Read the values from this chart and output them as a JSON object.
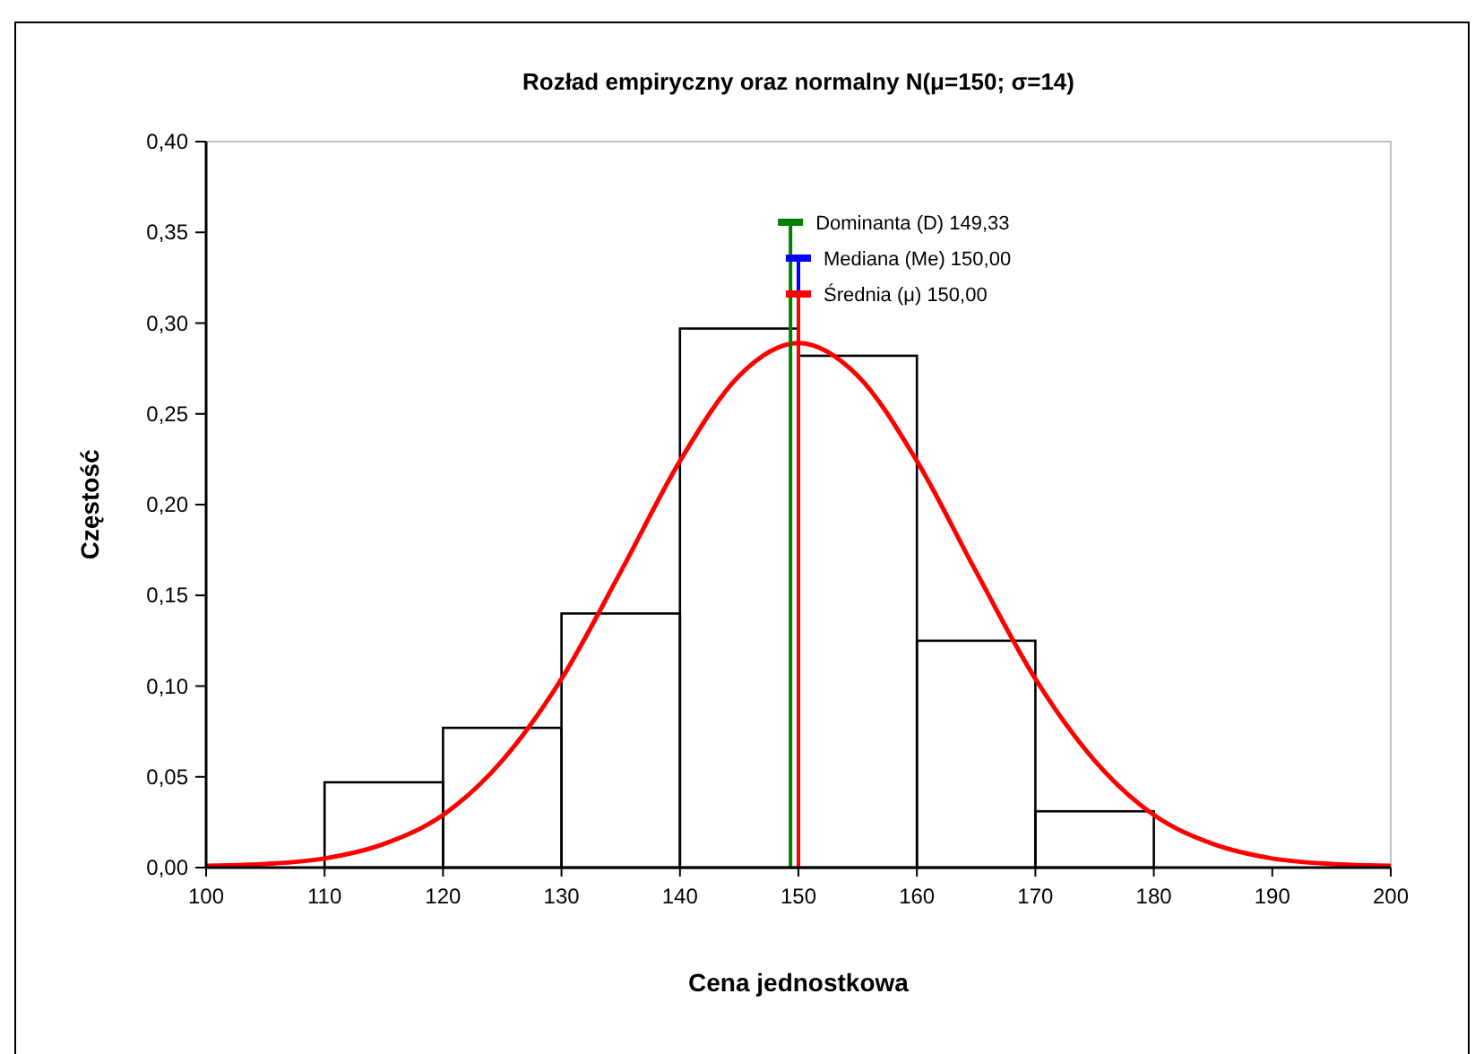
{
  "chart_data": {
    "type": "histogram",
    "title": "Rozład empiryczny oraz normalny N(μ=150; σ=14)",
    "xlabel": "Cena jednostkowa",
    "ylabel": "Częstość",
    "bins": [
      100,
      110,
      120,
      130,
      140,
      150,
      160,
      170,
      180,
      190,
      200
    ],
    "series": [
      {
        "color": "#000000",
        "values": [
          0,
          0.047,
          0.077,
          0.14,
          0.297,
          0.282,
          0.125,
          0.031,
          0,
          0
        ]
      },
      {
        "type": "line",
        "color": "#ff0000",
        "x": [
          100,
          105,
          110,
          115,
          120,
          125,
          130,
          135,
          140,
          145,
          150,
          155,
          160,
          165,
          170,
          175,
          180,
          185,
          190,
          195,
          200
        ],
        "values": [
          0.001,
          0.002,
          0.005,
          0.013,
          0.029,
          0.059,
          0.104,
          0.163,
          0.224,
          0.271,
          0.289,
          0.271,
          0.224,
          0.163,
          0.104,
          0.059,
          0.029,
          0.013,
          0.005,
          0.002,
          0.001
        ]
      }
    ],
    "ref_lines": [
      {
        "axis": "x",
        "value": 149.33,
        "label": "Dominanta (D) 149,33",
        "color": "#008000"
      },
      {
        "axis": "x",
        "value": 150,
        "label": "Mediana (Me) 150,00",
        "color": "#0000ff"
      },
      {
        "axis": "x",
        "value": 150,
        "label": "Średnia (μ) 150,00",
        "color": "#ff0000"
      }
    ],
    "xlim": [
      100,
      200
    ],
    "xticks": [
      100,
      110,
      120,
      130,
      140,
      150,
      160,
      170,
      180,
      190,
      200
    ],
    "ylim": [
      0,
      0.4
    ],
    "yticks": [
      {
        "value": 0,
        "label": "0,00"
      },
      {
        "value": 0.05,
        "label": "0,05"
      },
      {
        "value": 0.1,
        "label": "0,10"
      },
      {
        "value": 0.15,
        "label": "0,15"
      },
      {
        "value": 0.2,
        "label": "0,20"
      },
      {
        "value": 0.25,
        "label": "0,25"
      },
      {
        "value": 0.3,
        "label": "0,30"
      },
      {
        "value": 0.35,
        "label": "0,35"
      },
      {
        "value": 0.4,
        "label": "0,40"
      }
    ],
    "grid": false,
    "marker": "none",
    "line_style": "solid"
  }
}
